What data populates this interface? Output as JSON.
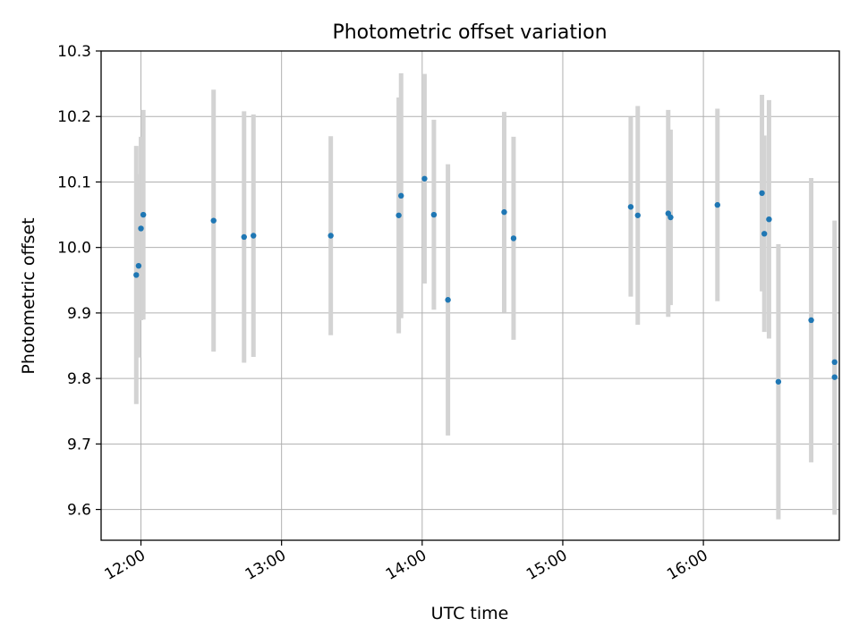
{
  "chart_data": {
    "type": "scatter",
    "title": "Photometric offset variation",
    "xlabel": "UTC time",
    "ylabel": "Photometric offset",
    "x_tick_labels": [
      "12:00",
      "13:00",
      "14:00",
      "15:00",
      "16:00"
    ],
    "x_ticks": [
      "12:00",
      "13:00",
      "14:00",
      "15:00",
      "16:00"
    ],
    "y_ticks": [
      9.6,
      9.7,
      9.8,
      9.9,
      10.0,
      10.1,
      10.2,
      10.3
    ],
    "y_tick_labels": [
      "9.6",
      "9.7",
      "9.8",
      "9.9",
      "10.0",
      "10.1",
      "10.2",
      "10.3"
    ],
    "xlim": [
      "11:43",
      "16:58"
    ],
    "ylim": [
      9.553,
      10.3
    ],
    "grid": true,
    "legend": "none",
    "colors": {
      "marker": "#1f77b4",
      "errorbar": "#d3d3d3",
      "grid": "#b0b0b0",
      "axes": "#000000"
    },
    "series": [
      {
        "x": [
          "11:58",
          "11:59",
          "12:00",
          "12:01",
          "12:31",
          "12:44",
          "12:48",
          "13:21",
          "13:50",
          "13:51",
          "14:01",
          "14:05",
          "14:11",
          "14:35",
          "14:39",
          "15:29",
          "15:32",
          "15:45",
          "15:46",
          "16:06",
          "16:25",
          "16:26",
          "16:28",
          "16:32",
          "16:46",
          "16:56",
          "16:56"
        ],
        "y": [
          9.958,
          9.972,
          10.029,
          10.05,
          10.041,
          10.016,
          10.018,
          10.018,
          10.049,
          10.079,
          10.105,
          10.05,
          9.92,
          10.054,
          10.014,
          10.062,
          10.049,
          10.052,
          10.046,
          10.065,
          10.083,
          10.021,
          10.043,
          9.795,
          9.889,
          9.825,
          9.802
        ],
        "yerr": [
          0.197,
          0.14,
          0.14,
          0.16,
          0.2,
          0.192,
          0.185,
          0.152,
          0.18,
          0.187,
          0.16,
          0.145,
          0.207,
          0.153,
          0.155,
          0.137,
          0.167,
          0.158,
          0.134,
          0.147,
          0.15,
          0.15,
          0.182,
          0.21,
          0.217,
          0.216,
          0.21
        ]
      }
    ]
  }
}
